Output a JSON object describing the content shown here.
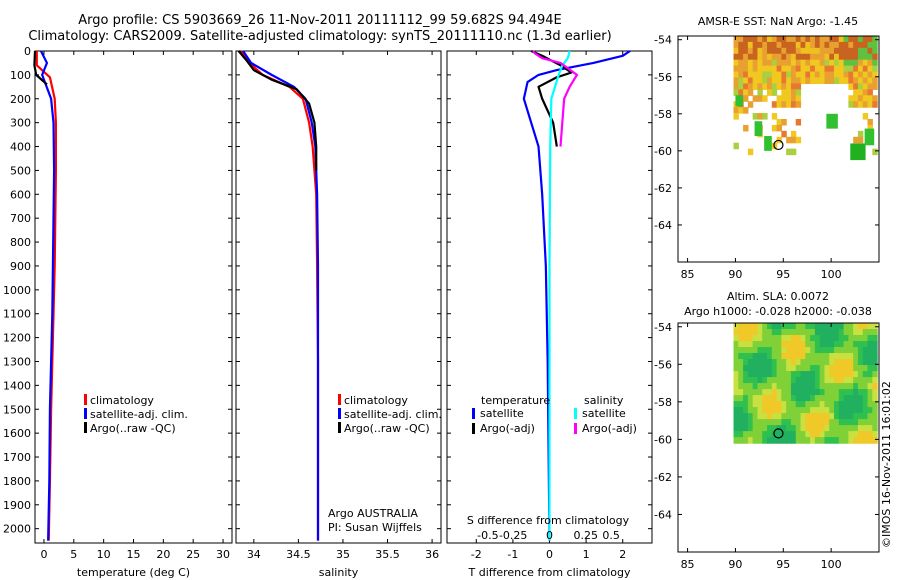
{
  "header": {
    "line1": "Argo profile: CS 5903669_26 11-Nov-2011 20111112_99 59.682S 94.494E",
    "line2": "Climatology: CARS2009. Satellite-adjusted climatology: synTS_20111110.nc (1.3d earlier)"
  },
  "credit": "©IMOS 16-Nov-2011 16:01:02",
  "chart_data": [
    {
      "type": "line",
      "id": "temperature",
      "xlabel": "temperature (deg C)",
      "xlim": [
        -1.5,
        31.5
      ],
      "ylim": [
        2060,
        0
      ],
      "y_reversed": true,
      "xticks": [
        0,
        5,
        10,
        15,
        20,
        25,
        30
      ],
      "xticklabels": [
        "0",
        "5",
        "10",
        "15",
        "20",
        "25",
        "30"
      ],
      "yticks": [
        0,
        100,
        200,
        300,
        400,
        500,
        600,
        700,
        800,
        900,
        1000,
        1100,
        1200,
        1300,
        1400,
        1500,
        1600,
        1700,
        1800,
        1900,
        2000
      ],
      "yticklabels": [
        "0",
        "100",
        "200",
        "300",
        "400",
        "500",
        "600",
        "700",
        "800",
        "900",
        "1000",
        "1100",
        "1200",
        "1300",
        "1400",
        "1500",
        "1600",
        "1700",
        "1800",
        "1900",
        "2000"
      ],
      "legend": [
        {
          "label": "climatology",
          "color": "#ff0000"
        },
        {
          "label": "satellite-adj. clim.",
          "color": "#0000ff"
        },
        {
          "label": "Argo(..raw -QC)",
          "color": "#000000"
        }
      ],
      "series": [
        {
          "name": "climatology",
          "color": "#ff0000",
          "x": [
            -1.2,
            -1.2,
            1.0,
            1.8,
            2.0,
            2.0,
            1.9,
            1.8,
            1.6,
            1.4,
            1.2,
            1.0,
            0.8
          ],
          "y": [
            0,
            60,
            110,
            200,
            300,
            500,
            700,
            900,
            1100,
            1300,
            1500,
            1800,
            2050
          ]
        },
        {
          "name": "satellite-adj. clim.",
          "color": "#0000ff",
          "x": [
            -0.5,
            0.5,
            -0.3,
            1.2,
            1.6,
            1.7,
            1.6,
            1.5,
            1.4,
            1.2,
            1.0,
            0.9,
            0.7
          ],
          "y": [
            0,
            50,
            100,
            200,
            300,
            500,
            700,
            900,
            1100,
            1300,
            1500,
            1800,
            2050
          ]
        },
        {
          "name": "Argo(..raw -QC)",
          "color": "#000000",
          "x": [
            -1.5,
            -1.6,
            -1.3,
            0.5
          ],
          "y": [
            0,
            60,
            100,
            140
          ]
        }
      ]
    },
    {
      "type": "line",
      "id": "salinity",
      "xlabel": "salinity",
      "xlim": [
        33.8,
        36.1
      ],
      "ylim": [
        2060,
        0
      ],
      "y_reversed": true,
      "xticks": [
        34,
        34.5,
        35,
        35.5,
        36
      ],
      "xticklabels": [
        "34",
        "34.5",
        "35",
        "35.5",
        "36"
      ],
      "legend": [
        {
          "label": "climatology",
          "color": "#ff0000"
        },
        {
          "label": "satellite-adj. clim.",
          "color": "#0000ff"
        },
        {
          "label": "Argo(..raw -QC)",
          "color": "#000000"
        }
      ],
      "annotation": [
        "Argo AUSTRALIA",
        "PI: Susan Wijffels"
      ],
      "series": [
        {
          "name": "climatology",
          "color": "#ff0000",
          "x": [
            33.86,
            33.95,
            34.1,
            34.4,
            34.55,
            34.62,
            34.66,
            34.7,
            34.71,
            34.72,
            34.72,
            34.72
          ],
          "y": [
            0,
            50,
            100,
            150,
            200,
            300,
            400,
            600,
            900,
            1300,
            1700,
            2050
          ]
        },
        {
          "name": "satellite-adj. clim.",
          "color": "#0000ff",
          "x": [
            33.88,
            33.97,
            34.2,
            34.45,
            34.58,
            34.65,
            34.69,
            34.71,
            34.72,
            34.72,
            34.72
          ],
          "y": [
            0,
            50,
            100,
            150,
            200,
            300,
            400,
            600,
            900,
            1300,
            2050
          ]
        },
        {
          "name": "Argo(..raw -QC)",
          "color": "#000000",
          "x": [
            33.83,
            33.92,
            34.0,
            34.2,
            34.48,
            34.62,
            34.68,
            34.7,
            34.7
          ],
          "y": [
            0,
            40,
            80,
            120,
            160,
            220,
            300,
            400,
            500
          ]
        }
      ]
    },
    {
      "type": "line",
      "id": "difference",
      "xlabel": "T difference from climatology",
      "xlabel_top": "S difference from climatology",
      "xlim": [
        -2.8,
        2.8
      ],
      "ylim": [
        2060,
        0
      ],
      "y_reversed": true,
      "xticks": [
        -2,
        -1,
        0,
        1,
        2
      ],
      "xticklabels": [
        "-2",
        "-1",
        "0",
        "1",
        "2"
      ],
      "xticklabels_top": [
        "-0.5",
        "-0.25",
        "0",
        "0.25",
        "0.5"
      ],
      "xticks_top_T": [
        -2,
        -1,
        0,
        1,
        2
      ],
      "legend_left_title": "temperature",
      "legend_right_title": "salinity",
      "legend": [
        {
          "label": "satellite",
          "color": "#0000ff"
        },
        {
          "label": "Argo(-adj)",
          "color": "#000000"
        },
        {
          "label": "satellite",
          "color": "#00ffff"
        },
        {
          "label": "Argo(-adj)",
          "color": "#ff00ff"
        }
      ],
      "series": [
        {
          "name": "temperature satellite",
          "color": "#0000ff",
          "x": [
            2.2,
            2.0,
            1.2,
            0.2,
            -0.3,
            -0.6,
            -0.7,
            -0.5,
            -0.3,
            -0.2,
            -0.1,
            -0.05,
            0
          ],
          "y": [
            0,
            20,
            50,
            80,
            100,
            130,
            200,
            300,
            400,
            600,
            900,
            1300,
            2050
          ]
        },
        {
          "name": "temperature Argo(-adj)",
          "color": "#000000",
          "x": [
            -0.5,
            -0.2,
            0.3,
            0.6,
            0.2,
            -0.3,
            -0.2,
            0.1,
            0.2
          ],
          "y": [
            0,
            20,
            60,
            90,
            110,
            150,
            200,
            300,
            400
          ]
        },
        {
          "name": "salinity satellite",
          "color": "#00ffff",
          "x": [
            0.55,
            0.5,
            0.35,
            0.25,
            0.05,
            0.02,
            0.0,
            0.0
          ],
          "y": [
            0,
            30,
            60,
            100,
            200,
            400,
            900,
            2050
          ]
        },
        {
          "name": "salinity Argo(-adj)",
          "color": "#ff00ff",
          "x": [
            -0.45,
            -0.4,
            -0.2,
            0.3,
            0.75,
            0.55,
            0.4,
            0.35,
            0.3
          ],
          "y": [
            0,
            10,
            30,
            50,
            100,
            150,
            200,
            300,
            400
          ]
        }
      ]
    },
    {
      "type": "heatmap",
      "id": "sst-map",
      "title": "AMSR-E SST: NaN Argo: -1.45",
      "xticks": [
        85,
        90,
        95,
        100
      ],
      "yticks": [
        -54,
        -56,
        -58,
        -60,
        -62,
        -64
      ],
      "xlim": [
        84,
        105
      ],
      "ylim": [
        -66,
        -53.8
      ],
      "marker": {
        "lon": 94.494,
        "lat": -59.682
      }
    },
    {
      "type": "heatmap",
      "id": "sla-map",
      "title_line1": "Altim. SLA: 0.0072",
      "title_line2": "Argo h1000: -0.028 h2000: -0.038",
      "xticks": [
        85,
        90,
        95,
        100
      ],
      "yticks": [
        -54,
        -56,
        -58,
        -60,
        -62,
        -64
      ],
      "xlim": [
        84,
        105
      ],
      "ylim": [
        -66,
        -53.8
      ],
      "marker": {
        "lon": 94.494,
        "lat": -59.682
      }
    }
  ]
}
